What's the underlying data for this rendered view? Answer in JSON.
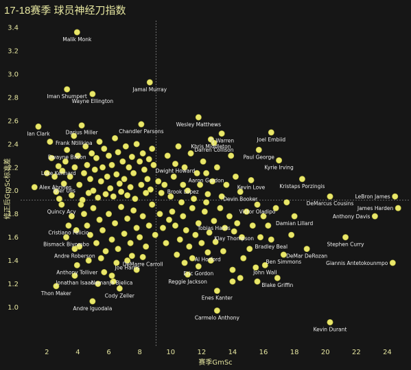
{
  "chart_data": {
    "type": "scatter",
    "title": "17-18赛季 球员神经刀指数",
    "xlabel": "赛季GmSc",
    "ylabel": "修正后GmSc标准差",
    "xlim": [
      0.3,
      25.4
    ],
    "ylim": [
      0.69,
      3.46
    ],
    "xticks": [
      "2",
      "4",
      "6",
      "8",
      "10",
      "12",
      "14",
      "16",
      "18",
      "20",
      "22",
      "24"
    ],
    "yticks": [
      "1.0",
      "1.2",
      "1.4",
      "1.6",
      "1.8",
      "2.0",
      "2.2",
      "2.4",
      "2.6",
      "2.8",
      "3.0",
      "3.2",
      "3.4"
    ],
    "ref_x": 9.05,
    "ref_y": 1.92,
    "grid": false,
    "dot_color": "#e9e76a",
    "labeled_points": [
      {
        "name": "Malik Monk",
        "x": 3.95,
        "y": 3.36
      },
      {
        "name": "Iman Shumpert",
        "x": 3.3,
        "y": 2.87
      },
      {
        "name": "Jamal Murray",
        "x": 8.65,
        "y": 2.93
      },
      {
        "name": "Wayne Ellington",
        "x": 4.95,
        "y": 2.83
      },
      {
        "name": "Wesley Matthews",
        "x": 11.8,
        "y": 2.63
      },
      {
        "name": "Ian Clark",
        "x": 1.45,
        "y": 2.55
      },
      {
        "name": "Darius Miller",
        "x": 4.25,
        "y": 2.56
      },
      {
        "name": "Chandler Parsons",
        "x": 8.1,
        "y": 2.57
      },
      {
        "name": "Khris Middleton",
        "x": 12.6,
        "y": 2.44
      },
      {
        "name": "TJ Warren",
        "x": 13.3,
        "y": 2.49
      },
      {
        "name": "Joel Embiid",
        "x": 16.5,
        "y": 2.5
      },
      {
        "name": "Frank Ntilikina",
        "x": 3.75,
        "y": 2.47
      },
      {
        "name": "Dwayne Bacon",
        "x": 3.3,
        "y": 2.35
      },
      {
        "name": "Darren Collison",
        "x": 12.8,
        "y": 2.41
      },
      {
        "name": "Paul George",
        "x": 15.7,
        "y": 2.35
      },
      {
        "name": "Luke Kennard",
        "x": 2.75,
        "y": 2.21
      },
      {
        "name": "Dwight Howard",
        "x": 10.3,
        "y": 2.23
      },
      {
        "name": "Kyrie Irving",
        "x": 17.0,
        "y": 2.26
      },
      {
        "name": "Aaron Gordon",
        "x": 12.3,
        "y": 2.15
      },
      {
        "name": "Kevin Love",
        "x": 15.2,
        "y": 2.09
      },
      {
        "name": "Kristaps Porzingis",
        "x": 18.5,
        "y": 2.1
      },
      {
        "name": "Tyler Ulis",
        "x": 3.1,
        "y": 2.06
      },
      {
        "name": "Brook Lopez",
        "x": 10.8,
        "y": 2.05
      },
      {
        "name": "Alex Abrines",
        "x": 1.2,
        "y": 2.03
      },
      {
        "name": "Devin Booker",
        "x": 14.5,
        "y": 1.99
      },
      {
        "name": "LeBron James",
        "x": 24.5,
        "y": 1.95
      },
      {
        "name": "Victor Oladipo",
        "x": 15.6,
        "y": 1.88
      },
      {
        "name": "DeMarcus Cousins",
        "x": 20.3,
        "y": 1.95
      },
      {
        "name": "Quincy Acy",
        "x": 2.95,
        "y": 1.88
      },
      {
        "name": "James Harden",
        "x": 24.7,
        "y": 1.85
      },
      {
        "name": "Damian Lillard",
        "x": 18.0,
        "y": 1.78
      },
      {
        "name": "Anthony Davis",
        "x": 23.2,
        "y": 1.78
      },
      {
        "name": "Cristiano Felicio",
        "x": 3.4,
        "y": 1.7
      },
      {
        "name": "Tobias Harris",
        "x": 12.8,
        "y": 1.74
      },
      {
        "name": "Klay Thompson",
        "x": 14.1,
        "y": 1.65
      },
      {
        "name": "Bismack Biyombo",
        "x": 3.25,
        "y": 1.6
      },
      {
        "name": "Bradley Beal",
        "x": 16.5,
        "y": 1.58
      },
      {
        "name": "Stephen Curry",
        "x": 21.3,
        "y": 1.6
      },
      {
        "name": "Andre Roberson",
        "x": 3.8,
        "y": 1.5
      },
      {
        "name": "DeMar DeRozan",
        "x": 18.8,
        "y": 1.5
      },
      {
        "name": "DeMarre Carroll",
        "x": 8.2,
        "y": 1.43
      },
      {
        "name": "Al Horford",
        "x": 12.4,
        "y": 1.47
      },
      {
        "name": "Ben Simmons",
        "x": 17.3,
        "y": 1.45
      },
      {
        "name": "Joe Harris",
        "x": 7.2,
        "y": 1.4
      },
      {
        "name": "Anthony Tolliver",
        "x": 3.95,
        "y": 1.36
      },
      {
        "name": "Giannis Antetokounmpo",
        "x": 24.35,
        "y": 1.38
      },
      {
        "name": "Eric Gordon",
        "x": 11.8,
        "y": 1.35
      },
      {
        "name": "John Wall",
        "x": 16.1,
        "y": 1.36
      },
      {
        "name": "Jonathan Isaac",
        "x": 3.8,
        "y": 1.27
      },
      {
        "name": "Nemanja Bjelica",
        "x": 6.2,
        "y": 1.27
      },
      {
        "name": "Reggie Jackson",
        "x": 11.1,
        "y": 1.28
      },
      {
        "name": "Blake Griffin",
        "x": 16.9,
        "y": 1.25
      },
      {
        "name": "Thon Maker",
        "x": 2.6,
        "y": 1.18
      },
      {
        "name": "Enes Kanter",
        "x": 13.0,
        "y": 1.14
      },
      {
        "name": "Cody Zeller",
        "x": 6.7,
        "y": 1.16
      },
      {
        "name": "Andre Iguodala",
        "x": 4.95,
        "y": 1.05
      },
      {
        "name": "Carmelo Anthony",
        "x": 13.0,
        "y": 0.97
      },
      {
        "name": "Kevin Durant",
        "x": 20.3,
        "y": 0.87
      }
    ],
    "unlabeled_points": [
      [
        2.0,
        2.15
      ],
      [
        2.2,
        2.42
      ],
      [
        2.3,
        2.28
      ],
      [
        2.5,
        2.12
      ],
      [
        2.6,
        1.99
      ],
      [
        2.8,
        1.93
      ],
      [
        3.0,
        2.17
      ],
      [
        3.2,
        2.25
      ],
      [
        3.5,
        2.12
      ],
      [
        3.6,
        1.96
      ],
      [
        3.8,
        2.2
      ],
      [
        4.0,
        2.3
      ],
      [
        4.1,
        2.05
      ],
      [
        4.3,
        1.92
      ],
      [
        4.4,
        2.15
      ],
      [
        4.5,
        2.38
      ],
      [
        4.6,
        2.22
      ],
      [
        4.7,
        1.98
      ],
      [
        4.8,
        2.1
      ],
      [
        4.9,
        2.32
      ],
      [
        5.0,
        2.0
      ],
      [
        5.1,
        2.18
      ],
      [
        5.2,
        2.28
      ],
      [
        5.3,
        1.94
      ],
      [
        5.4,
        2.42
      ],
      [
        5.5,
        2.08
      ],
      [
        5.6,
        2.2
      ],
      [
        5.7,
        2.36
      ],
      [
        5.8,
        1.97
      ],
      [
        5.9,
        2.12
      ],
      [
        6.0,
        2.3
      ],
      [
        6.1,
        2.02
      ],
      [
        6.2,
        2.22
      ],
      [
        6.3,
        1.95
      ],
      [
        6.4,
        2.45
      ],
      [
        6.5,
        2.14
      ],
      [
        6.6,
        2.33
      ],
      [
        6.7,
        2.06
      ],
      [
        6.8,
        1.99
      ],
      [
        6.9,
        2.25
      ],
      [
        7.0,
        2.1
      ],
      [
        7.1,
        2.38
      ],
      [
        7.2,
        1.96
      ],
      [
        7.3,
        2.2
      ],
      [
        7.4,
        2.03
      ],
      [
        7.5,
        2.29
      ],
      [
        7.6,
        2.15
      ],
      [
        7.7,
        1.93
      ],
      [
        7.8,
        2.4
      ],
      [
        8.0,
        2.25
      ],
      [
        8.1,
        2.05
      ],
      [
        8.2,
        2.32
      ],
      [
        8.3,
        2.18
      ],
      [
        8.4,
        1.98
      ],
      [
        8.5,
        2.1
      ],
      [
        8.6,
        2.27
      ],
      [
        8.7,
        2.01
      ],
      [
        8.8,
        2.36
      ],
      [
        8.9,
        2.22
      ],
      [
        9.2,
        2.08
      ],
      [
        4.4,
        1.8
      ],
      [
        4.6,
        1.7
      ],
      [
        4.8,
        1.62
      ],
      [
        5.0,
        1.85
      ],
      [
        5.2,
        1.55
      ],
      [
        5.4,
        1.75
      ],
      [
        5.6,
        1.66
      ],
      [
        5.8,
        1.48
      ],
      [
        6.0,
        1.8
      ],
      [
        6.2,
        1.58
      ],
      [
        6.4,
        1.72
      ],
      [
        6.6,
        1.5
      ],
      [
        6.8,
        1.86
      ],
      [
        7.0,
        1.63
      ],
      [
        7.2,
        1.76
      ],
      [
        7.4,
        1.55
      ],
      [
        7.6,
        1.83
      ],
      [
        7.8,
        1.68
      ],
      [
        8.0,
        1.6
      ],
      [
        8.2,
        1.78
      ],
      [
        8.4,
        1.52
      ],
      [
        8.6,
        1.7
      ],
      [
        8.8,
        1.88
      ],
      [
        9.0,
        1.62
      ],
      [
        9.3,
        1.8
      ],
      [
        9.5,
        1.68
      ],
      [
        9.7,
        1.55
      ],
      [
        9.9,
        1.75
      ],
      [
        3.6,
        1.78
      ],
      [
        3.9,
        1.66
      ],
      [
        4.1,
        1.52
      ],
      [
        4.2,
        1.88
      ],
      [
        5.5,
        1.42
      ],
      [
        6.5,
        1.38
      ],
      [
        7.5,
        1.44
      ],
      [
        5.7,
        1.3
      ],
      [
        6.3,
        1.22
      ],
      [
        4.7,
        1.4
      ],
      [
        5.3,
        1.2
      ],
      [
        7.8,
        1.32
      ],
      [
        9.6,
        2.05
      ],
      [
        9.8,
        2.3
      ],
      [
        10.0,
        1.95
      ],
      [
        10.2,
        2.12
      ],
      [
        10.5,
        2.38
      ],
      [
        10.7,
        1.9
      ],
      [
        10.9,
        2.2
      ],
      [
        11.1,
        2.0
      ],
      [
        11.3,
        2.32
      ],
      [
        11.5,
        1.93
      ],
      [
        11.7,
        2.15
      ],
      [
        11.9,
        2.05
      ],
      [
        12.1,
        2.25
      ],
      [
        12.4,
        1.97
      ],
      [
        12.7,
        2.08
      ],
      [
        13.0,
        2.2
      ],
      [
        13.3,
        1.95
      ],
      [
        13.6,
        2.05
      ],
      [
        13.9,
        2.3
      ],
      [
        14.2,
        2.12
      ],
      [
        10.1,
        1.82
      ],
      [
        10.3,
        1.7
      ],
      [
        10.6,
        1.58
      ],
      [
        10.8,
        1.78
      ],
      [
        11.0,
        1.66
      ],
      [
        11.2,
        1.52
      ],
      [
        11.4,
        1.85
      ],
      [
        11.6,
        1.62
      ],
      [
        11.8,
        1.72
      ],
      [
        12.0,
        1.55
      ],
      [
        12.2,
        1.82
      ],
      [
        12.5,
        1.64
      ],
      [
        12.9,
        1.56
      ],
      [
        13.2,
        1.85
      ],
      [
        13.5,
        1.68
      ],
      [
        13.8,
        1.78
      ],
      [
        14.3,
        1.72
      ],
      [
        14.6,
        1.6
      ],
      [
        14.9,
        1.82
      ],
      [
        15.3,
        1.7
      ],
      [
        10.4,
        1.45
      ],
      [
        10.9,
        1.38
      ],
      [
        11.4,
        1.42
      ],
      [
        12.6,
        1.4
      ],
      [
        13.4,
        1.48
      ],
      [
        14.0,
        1.32
      ],
      [
        14.7,
        1.42
      ],
      [
        15.1,
        1.5
      ],
      [
        15.5,
        1.34
      ],
      [
        16.3,
        1.7
      ],
      [
        16.8,
        1.85
      ],
      [
        17.5,
        1.9
      ],
      [
        15.8,
        1.6
      ],
      [
        16.0,
        1.78
      ],
      [
        17.8,
        1.62
      ],
      [
        15.6,
        1.22
      ],
      [
        14.5,
        1.25
      ],
      [
        14.0,
        1.22
      ],
      [
        12.3,
        1.9
      ],
      [
        9.4,
        1.98
      ]
    ]
  }
}
